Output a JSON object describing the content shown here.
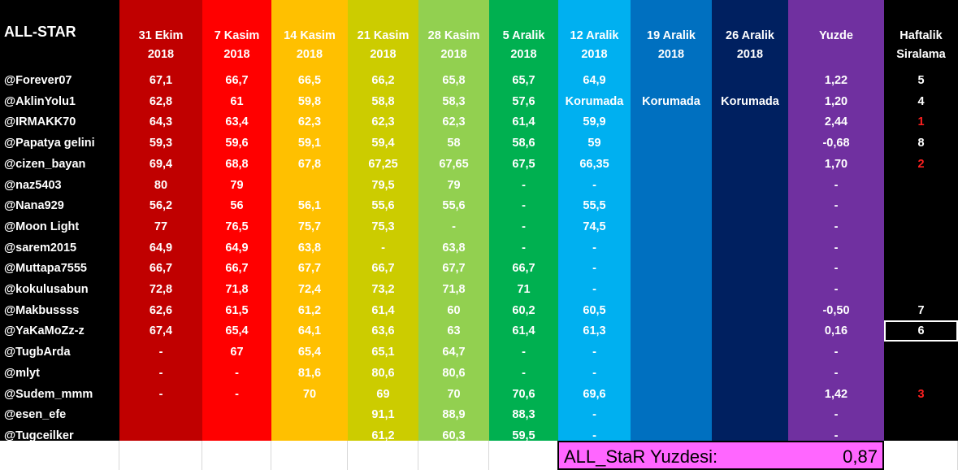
{
  "title": "ALL-STAR",
  "columns": [
    {
      "header": "31 Ekim\n2018",
      "color": "#c00000"
    },
    {
      "header": "7 Kasim\n2018",
      "color": "#ff0000"
    },
    {
      "header": "14 Kasim\n2018",
      "color": "#ffc000"
    },
    {
      "header": "21 Kasim\n2018",
      "color": "#cccc00"
    },
    {
      "header": "28 Kasim\n2018",
      "color": "#92d050"
    },
    {
      "header": "5 Aralik\n2018",
      "color": "#00b050"
    },
    {
      "header": "12 Aralik\n2018",
      "color": "#00b0f0"
    },
    {
      "header": "19 Aralik\n2018",
      "color": "#0070c0"
    },
    {
      "header": "26 Aralik\n2018",
      "color": "#002060"
    },
    {
      "header": "Yuzde",
      "color": "#7030a0"
    },
    {
      "header": "Haftalik\nSiralama",
      "color": "#000000"
    }
  ],
  "rows": [
    {
      "name": "@Forever07",
      "vals": [
        "67,1",
        "66,7",
        "66,5",
        "66,2",
        "65,8",
        "65,7",
        "64,9",
        "",
        "",
        "1,22",
        "5"
      ],
      "rank_red": false
    },
    {
      "name": "@AklinYolu1",
      "vals": [
        "62,8",
        "61",
        "59,8",
        "58,8",
        "58,3",
        "57,6",
        "Korumada",
        "Korumada",
        "Korumada",
        "1,20",
        "4"
      ],
      "rank_red": false
    },
    {
      "name": "@IRMAKK70",
      "vals": [
        "64,3",
        "63,4",
        "62,3",
        "62,3",
        "62,3",
        "61,4",
        "59,9",
        "",
        "",
        "2,44",
        "1"
      ],
      "rank_red": true
    },
    {
      "name": "@Papatya gelini",
      "vals": [
        "59,3",
        "59,6",
        "59,1",
        "59,4",
        "58",
        "58,6",
        "59",
        "",
        "",
        "-0,68",
        "8"
      ],
      "rank_red": false
    },
    {
      "name": "@cizen_bayan",
      "vals": [
        "69,4",
        "68,8",
        "67,8",
        "67,25",
        "67,65",
        "67,5",
        "66,35",
        "",
        "",
        "1,70",
        "2"
      ],
      "rank_red": true
    },
    {
      "name": "@naz5403",
      "vals": [
        "80",
        "79",
        "",
        "79,5",
        "79",
        "-",
        "-",
        "",
        "",
        "-",
        ""
      ],
      "rank_red": false
    },
    {
      "name": "@Nana929",
      "vals": [
        "56,2",
        "56",
        "56,1",
        "55,6",
        "55,6",
        "-",
        "55,5",
        "",
        "",
        "-",
        ""
      ],
      "rank_red": false
    },
    {
      "name": "@Moon Light",
      "vals": [
        "77",
        "76,5",
        "75,7",
        "75,3",
        "-",
        "-",
        "74,5",
        "",
        "",
        "-",
        ""
      ],
      "rank_red": false
    },
    {
      "name": "@sarem2015",
      "vals": [
        "64,9",
        "64,9",
        "63,8",
        "-",
        "63,8",
        "-",
        "-",
        "",
        "",
        "-",
        ""
      ],
      "rank_red": false
    },
    {
      "name": "@Muttapa7555",
      "vals": [
        "66,7",
        "66,7",
        "67,7",
        "66,7",
        "67,7",
        "66,7",
        "-",
        "",
        "",
        "-",
        ""
      ],
      "rank_red": false
    },
    {
      "name": "@kokulusabun",
      "vals": [
        "72,8",
        "71,8",
        "72,4",
        "73,2",
        "71,8",
        "71",
        "-",
        "",
        "",
        "-",
        ""
      ],
      "rank_red": false
    },
    {
      "name": "@Makbussss",
      "vals": [
        "62,6",
        "61,5",
        "61,2",
        "61,4",
        "60",
        "60,2",
        "60,5",
        "",
        "",
        "-0,50",
        "7"
      ],
      "rank_red": false
    },
    {
      "name": "@YaKaMoZz-z",
      "vals": [
        "67,4",
        "65,4",
        "64,1",
        "63,6",
        "63",
        "61,4",
        "61,3",
        "",
        "",
        "0,16",
        "6"
      ],
      "rank_red": false
    },
    {
      "name": "@TugbArda",
      "vals": [
        "-",
        "67",
        "65,4",
        "65,1",
        "64,7",
        "-",
        "-",
        "",
        "",
        "-",
        ""
      ],
      "rank_red": false
    },
    {
      "name": "@mlyt",
      "vals": [
        "-",
        "-",
        "81,6",
        "80,6",
        "80,6",
        "-",
        "-",
        "",
        "",
        "-",
        ""
      ],
      "rank_red": false
    },
    {
      "name": "@Sudem_mmm",
      "vals": [
        "-",
        "-",
        "70",
        "69",
        "70",
        "70,6",
        "69,6",
        "",
        "",
        "1,42",
        "3"
      ],
      "rank_red": true
    },
    {
      "name": "@esen_efe",
      "vals": [
        "",
        "",
        "",
        "91,1",
        "88,9",
        "88,3",
        "-",
        "",
        "",
        "-",
        ""
      ],
      "rank_red": false
    },
    {
      "name": "@Tugceilker",
      "vals": [
        "",
        "",
        "",
        "61,2",
        "60,3",
        "59,5",
        "-",
        "",
        "",
        "-",
        ""
      ],
      "rank_red": false
    }
  ],
  "summary": {
    "label": "ALL_StaR Yuzdesi:",
    "value": "0,87",
    "color": "#ff66ff"
  }
}
